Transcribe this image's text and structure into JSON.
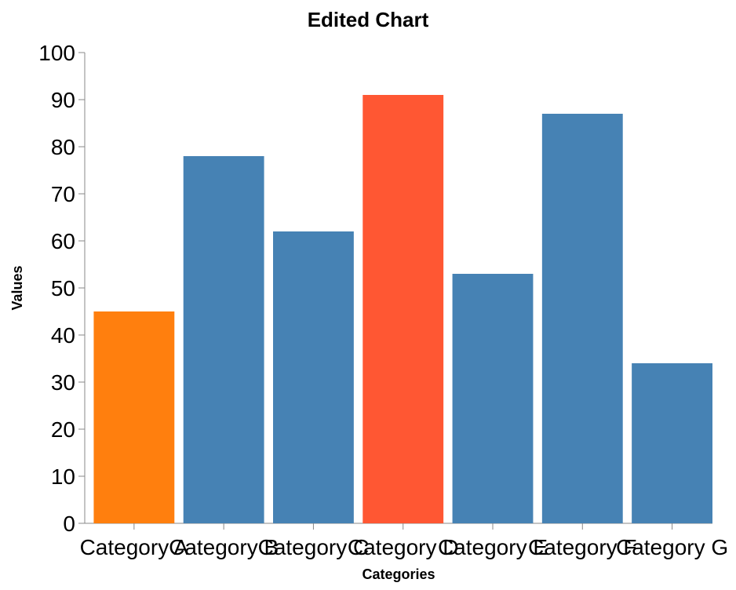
{
  "chart_data": {
    "type": "bar",
    "title": "Edited Chart",
    "xlabel": "Categories",
    "ylabel": "Values",
    "ylim": [
      0,
      100
    ],
    "yticks": [
      0,
      10,
      20,
      30,
      40,
      50,
      60,
      70,
      80,
      90,
      100
    ],
    "grid": false,
    "categories": [
      "Category A",
      "Category B",
      "Category C",
      "Category D",
      "Category E",
      "Category F",
      "Category G"
    ],
    "values": [
      45,
      78,
      62,
      91,
      53,
      87,
      34
    ],
    "colors": [
      "#ff7f0e",
      "#4682b4",
      "#4682b4",
      "#ff5733",
      "#4682b4",
      "#4682b4",
      "#4682b4"
    ]
  }
}
